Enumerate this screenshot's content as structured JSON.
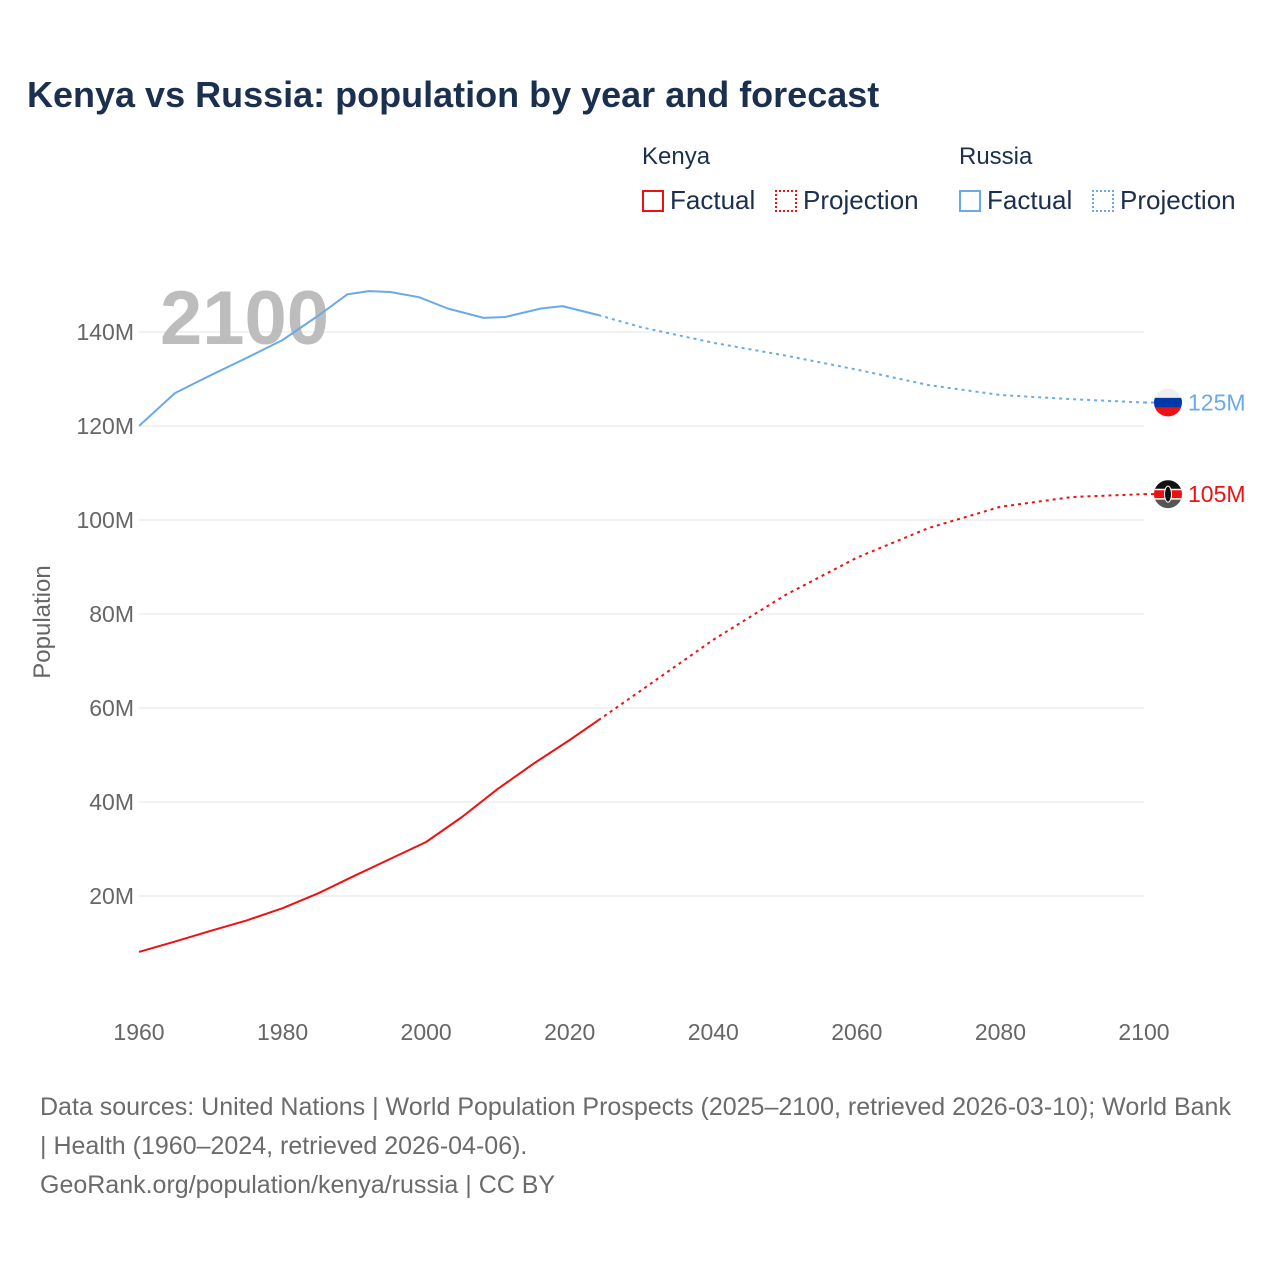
{
  "title": "Kenya vs Russia: population by year and forecast",
  "legend": {
    "groups": [
      {
        "name": "Kenya",
        "factual": "Factual",
        "projection": "Projection",
        "color": "#ee1111"
      },
      {
        "name": "Russia",
        "factual": "Factual",
        "projection": "Projection",
        "color": "#6aaae8"
      }
    ]
  },
  "year_watermark": "2100",
  "sources": "Data sources: United Nations | World Population Prospects (2025–2100, retrieved 2026-03-10); World Bank | Health (1960–2024, retrieved 2026-04-06).",
  "credit": "GeoRank.org/population/kenya/russia | CC BY",
  "chart_data": {
    "type": "line",
    "title": "Kenya vs Russia: population by year and forecast",
    "xlabel": "",
    "ylabel": "Population",
    "xlim": [
      1960,
      2100
    ],
    "ylim": [
      0,
      150
    ],
    "x_ticks": [
      "1960",
      "1980",
      "2000",
      "2020",
      "2040",
      "2060",
      "2080",
      "2100"
    ],
    "x_tick_values": [
      1960,
      1980,
      2000,
      2020,
      2040,
      2060,
      2080,
      2100
    ],
    "y_ticks": [
      "20M",
      "40M",
      "60M",
      "80M",
      "100M",
      "120M",
      "140M"
    ],
    "y_tick_values": [
      20,
      40,
      60,
      80,
      100,
      120,
      140
    ],
    "units": "millions",
    "grid": true,
    "legend_position": "top-right",
    "series": [
      {
        "name": "Russia",
        "color": "#6aaae8",
        "end_label": "125M",
        "factual": {
          "x": [
            1960,
            1965,
            1970,
            1975,
            1980,
            1985,
            1989,
            1992,
            1995,
            1999,
            2003,
            2008,
            2011,
            2016,
            2019,
            2024
          ],
          "y": [
            120,
            127,
            130.8,
            134.5,
            138.3,
            143.5,
            148,
            148.7,
            148.5,
            147.4,
            145,
            143,
            143.2,
            145,
            145.5,
            143.6
          ]
        },
        "projection": {
          "x": [
            2024,
            2030,
            2040,
            2050,
            2060,
            2070,
            2080,
            2090,
            2100
          ],
          "y": [
            143.6,
            141,
            137.7,
            135,
            132,
            128.7,
            126.6,
            125.7,
            125
          ]
        }
      },
      {
        "name": "Kenya",
        "color": "#ee1111",
        "end_label": "105M",
        "factual": {
          "x": [
            1960,
            1965,
            1970,
            1975,
            1980,
            1985,
            1990,
            1995,
            2000,
            2005,
            2010,
            2015,
            2020,
            2024
          ],
          "y": [
            8.1,
            10.3,
            12.6,
            14.8,
            17.4,
            20.6,
            24.3,
            27.9,
            31.5,
            36.8,
            42.8,
            48.2,
            53.2,
            57.4
          ]
        },
        "projection": {
          "x": [
            2024,
            2030,
            2040,
            2050,
            2060,
            2070,
            2080,
            2090,
            2100
          ],
          "y": [
            57.4,
            63.8,
            74.5,
            84,
            92,
            98.3,
            102.8,
            104.9,
            105.5
          ]
        }
      }
    ]
  }
}
